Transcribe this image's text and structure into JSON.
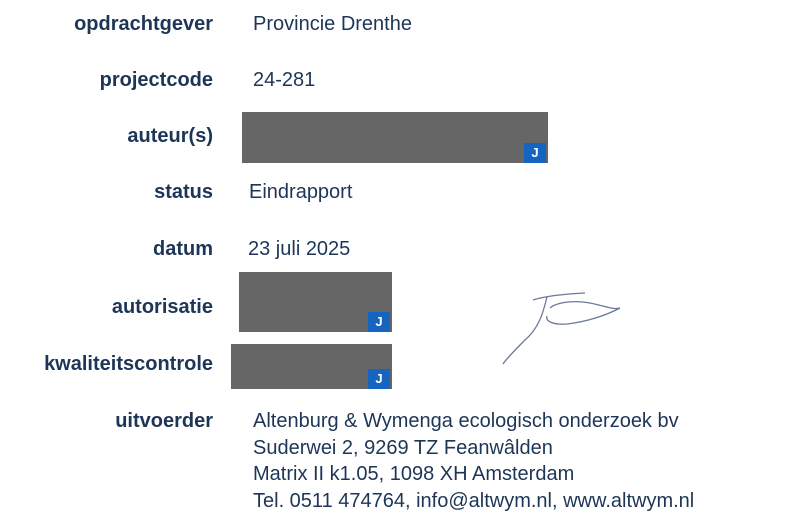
{
  "rows": [
    {
      "label": "opdrachtgever",
      "value": "Provincie Drenthe"
    },
    {
      "label": "projectcode",
      "value": "24-281"
    },
    {
      "label": "auteur(s)",
      "badge": "J"
    },
    {
      "label": "status",
      "value": "Eindrapport"
    },
    {
      "label": "datum",
      "value": "23 juli 2025"
    },
    {
      "label": "autorisatie",
      "badge": "J"
    },
    {
      "label": "kwaliteitscontrole",
      "badge": "J"
    },
    {
      "label": "uitvoerder",
      "lines": [
        "Altenburg & Wymenga ecologisch onderzoek bv",
        "Suderwei 2, 9269 TZ Feanwâlden",
        "Matrix II k1.05, 1098 XH Amsterdam",
        "Tel. 0511 474764, info@altwym.nl, www.altwym.nl"
      ]
    }
  ]
}
